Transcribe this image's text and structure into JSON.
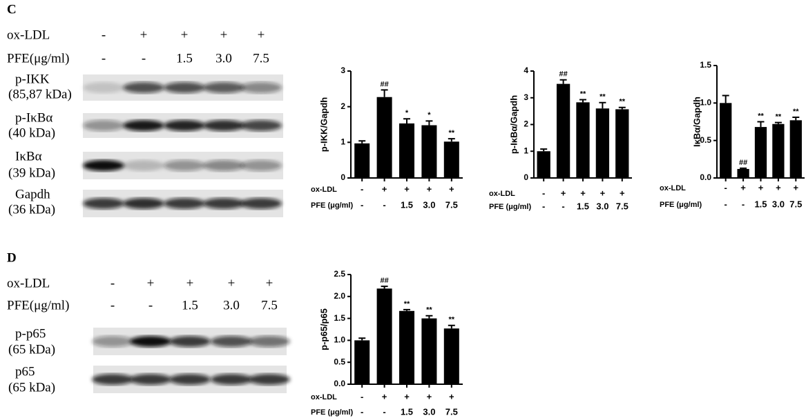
{
  "blots": [
    {
      "panel": "C",
      "conditions": [
        {
          "name": "ox-LDL",
          "labels": [
            "-",
            "+",
            "+",
            "+",
            "+"
          ]
        },
        {
          "name": "PFE(μg/ml)",
          "labels": [
            "-",
            "-",
            "1.5",
            "3.0",
            "7.5"
          ]
        }
      ],
      "bands": [
        {
          "name": "p-IKK",
          "size": "(85,87 kDa)"
        },
        {
          "name": "p-IκBα",
          "size": "(40 kDa)"
        },
        {
          "name": "IκBα",
          "size": "(39 kDa)"
        },
        {
          "name": "Gapdh",
          "size": "(36 kDa)"
        }
      ]
    },
    {
      "panel": "D",
      "conditions": [
        {
          "name": "ox-LDL",
          "labels": [
            "-",
            "+",
            "+",
            "+",
            "+"
          ]
        },
        {
          "name": "PFE(μg/ml)",
          "labels": [
            "-",
            "-",
            "1.5",
            "3.0",
            "7.5"
          ]
        }
      ],
      "bands": [
        {
          "name": "p-p65",
          "size": "(65 kDa)"
        },
        {
          "name": "p65",
          "size": "(65 kDa)"
        }
      ]
    }
  ],
  "chart_data": [
    {
      "type": "bar",
      "y_label": "p-IKK/Gapdh",
      "color": "#000000",
      "ylim": [
        0,
        3
      ],
      "yticks": [
        0,
        1,
        2,
        3
      ],
      "values": [
        0.97,
        2.27,
        1.53,
        1.48,
        1.02
      ],
      "errors": [
        0.07,
        0.2,
        0.13,
        0.12,
        0.08
      ],
      "annotations": [
        null,
        "##",
        "*",
        "*",
        "**"
      ],
      "conditions": [
        {
          "name": "ox-LDL",
          "labels": [
            "-",
            "+",
            "+",
            "+",
            "+"
          ]
        },
        {
          "name": "PFE  (μg/ml)",
          "labels": [
            "-",
            "-",
            "1.5",
            "3.0",
            "7.5"
          ]
        }
      ]
    },
    {
      "type": "bar",
      "y_label": "p-IκBα/Gapdh",
      "color": "#000000",
      "ylim": [
        0,
        4
      ],
      "yticks": [
        0,
        1,
        2,
        3,
        4
      ],
      "values": [
        1.0,
        3.52,
        2.83,
        2.6,
        2.57
      ],
      "errors": [
        0.08,
        0.15,
        0.1,
        0.22,
        0.07
      ],
      "annotations": [
        null,
        "##",
        "**",
        "**",
        "**"
      ],
      "conditions": [
        {
          "name": "ox-LDL",
          "labels": [
            "-",
            "+",
            "+",
            "+",
            "+"
          ]
        },
        {
          "name": "PFE  (μg/ml)",
          "labels": [
            "-",
            "-",
            "1.5",
            "3.0",
            "7.5"
          ]
        }
      ]
    },
    {
      "type": "bar",
      "y_label": "IκBα/Gapdh",
      "color": "#000000",
      "ylim": [
        0,
        1.5
      ],
      "yticks": [
        {
          "value": 0,
          "label": "0.0"
        },
        0.5,
        {
          "value": 1,
          "label": "1.0"
        },
        1.5
      ],
      "values": [
        1.0,
        0.12,
        0.68,
        0.72,
        0.77
      ],
      "errors": [
        0.1,
        0.01,
        0.07,
        0.02,
        0.04
      ],
      "annotations": [
        null,
        "##",
        "**",
        "**",
        "**"
      ],
      "conditions": [
        {
          "name": "ox-LDL",
          "labels": [
            "-",
            "+",
            "+",
            "+",
            "+"
          ]
        },
        {
          "name": "PFE  (μg/ml)",
          "labels": [
            "-",
            "-",
            "1.5",
            "3.0",
            "7.5"
          ]
        }
      ]
    },
    {
      "type": "bar",
      "y_label": "p-p65/p65",
      "color": "#000000",
      "ylim": [
        0,
        2.5
      ],
      "yticks": [
        {
          "value": 0,
          "label": "0.0"
        },
        0.5,
        {
          "value": 1,
          "label": "1.0"
        },
        1.5,
        {
          "value": 2,
          "label": "2.0"
        },
        2.5
      ],
      "values": [
        1.0,
        2.18,
        1.67,
        1.5,
        1.27
      ],
      "errors": [
        0.05,
        0.05,
        0.03,
        0.06,
        0.07
      ],
      "annotations": [
        null,
        "##",
        "**",
        "**",
        "**"
      ],
      "conditions": [
        {
          "name": "ox-LDL",
          "labels": [
            "-",
            "+",
            "+",
            "+",
            "+"
          ]
        },
        {
          "name": "PFE  (μg/ml)",
          "labels": [
            "-",
            "-",
            "1.5",
            "3.0",
            "7.5"
          ]
        }
      ]
    }
  ]
}
